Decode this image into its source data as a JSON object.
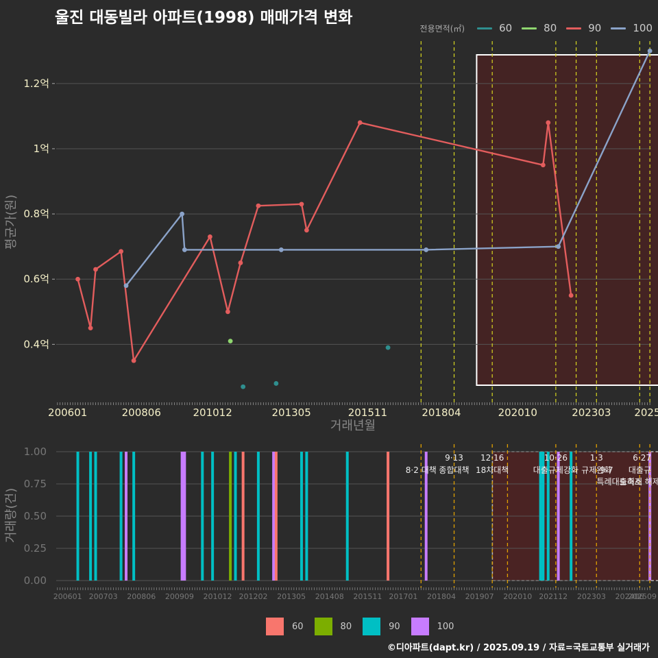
{
  "title": "울진 대동빌라 아파트(1998) 매매가격 변화",
  "legend_top": {
    "label": "전용면적(㎡)",
    "items": [
      {
        "name": "60",
        "color": "#2f8f8f"
      },
      {
        "name": "80",
        "color": "#8fd66f"
      },
      {
        "name": "90",
        "color": "#e35d5d"
      },
      {
        "name": "100",
        "color": "#8ba3c9"
      }
    ]
  },
  "legend_bottom": {
    "items": [
      {
        "name": "60",
        "color": "#f8766d"
      },
      {
        "name": "80",
        "color": "#7cae00"
      },
      {
        "name": "90",
        "color": "#00bfc4"
      },
      {
        "name": "100",
        "color": "#c77cff"
      }
    ]
  },
  "source": "©디아파트(dapt.kr) / 2025.09.19 / 자료=국토교통부 실거래가",
  "chart_data": [
    {
      "type": "line",
      "title": "울진 대동빌라 아파트(1998) 매매가격 변화",
      "xlabel": "거래년월",
      "ylabel": "평균가(원)",
      "x_unit": "months since 2006-01",
      "xlim": [
        -4.5,
        229.5
      ],
      "ylim": [
        0.22,
        1.33
      ],
      "x_ticks": [
        {
          "x": 0,
          "label": "200601"
        },
        {
          "x": 29,
          "label": "200806"
        },
        {
          "x": 57,
          "label": "201012"
        },
        {
          "x": 88,
          "label": "201305"
        },
        {
          "x": 118,
          "label": "201511"
        },
        {
          "x": 147,
          "label": "201804"
        },
        {
          "x": 177,
          "label": "202010"
        },
        {
          "x": 206,
          "label": "202303"
        },
        {
          "x": 228,
          "label": "2025"
        }
      ],
      "y_ticks": [
        {
          "y": 0.4,
          "label": "0.4억"
        },
        {
          "y": 0.6,
          "label": "0.6억"
        },
        {
          "y": 0.8,
          "label": "0.8억"
        },
        {
          "y": 1.0,
          "label": "1억"
        },
        {
          "y": 1.2,
          "label": "1.2억"
        }
      ],
      "series": [
        {
          "name": "90",
          "color": "#e35d5d",
          "kind": "line",
          "points": [
            [
              4,
              0.6
            ],
            [
              9,
              0.45
            ],
            [
              11,
              0.63
            ],
            [
              21,
              0.685
            ],
            [
              26,
              0.35
            ],
            [
              56,
              0.73
            ],
            [
              63,
              0.5
            ],
            [
              68,
              0.65
            ],
            [
              75,
              0.825
            ],
            [
              92,
              0.83
            ],
            [
              94,
              0.75
            ],
            [
              115,
              1.08
            ],
            [
              187,
              0.95
            ],
            [
              189,
              1.08
            ],
            [
              198,
              0.55
            ]
          ]
        },
        {
          "name": "100",
          "color": "#8ba3c9",
          "kind": "line",
          "points": [
            [
              23,
              0.58
            ],
            [
              45,
              0.8
            ],
            [
              46,
              0.69
            ],
            [
              84,
              0.69
            ],
            [
              141,
              0.69
            ],
            [
              193,
              0.7
            ],
            [
              229,
              1.3
            ]
          ]
        },
        {
          "name": "80",
          "color": "#8fd66f",
          "kind": "points",
          "points": [
            [
              64,
              0.41
            ]
          ]
        },
        {
          "name": "60",
          "color": "#2f8f8f",
          "kind": "points",
          "points": [
            [
              69,
              0.27
            ],
            [
              82,
              0.28
            ],
            [
              126,
              0.39
            ]
          ]
        }
      ],
      "policy_lines_x": [
        139,
        152,
        167,
        192,
        200,
        208,
        225,
        229
      ],
      "highlight_range_x": [
        173,
        229
      ]
    },
    {
      "type": "bar",
      "title": "",
      "ylabel": "거래량(건)",
      "ylim": [
        0,
        1
      ],
      "y_ticks": [
        "0.00",
        "0.25",
        "0.50",
        "0.75",
        "1.00"
      ],
      "x_ticks": [
        {
          "x": 0,
          "label": "200601"
        },
        {
          "x": 14,
          "label": "200703"
        },
        {
          "x": 29,
          "label": "200806"
        },
        {
          "x": 44,
          "label": "200909"
        },
        {
          "x": 59,
          "label": "201012"
        },
        {
          "x": 73,
          "label": "201202"
        },
        {
          "x": 88,
          "label": "201305"
        },
        {
          "x": 103,
          "label": "201408"
        },
        {
          "x": 118,
          "label": "201511"
        },
        {
          "x": 132,
          "label": "201701"
        },
        {
          "x": 147,
          "label": "201804"
        },
        {
          "x": 162,
          "label": "201907"
        },
        {
          "x": 177,
          "label": "202010"
        },
        {
          "x": 191,
          "label": "202112"
        },
        {
          "x": 206,
          "label": "202303"
        },
        {
          "x": 221,
          "label": "202406"
        },
        {
          "x": 229,
          "label": "202509"
        }
      ],
      "bars": [
        {
          "x": 4,
          "size": "90",
          "value": 1
        },
        {
          "x": 9,
          "size": "90",
          "value": 1
        },
        {
          "x": 11,
          "size": "90",
          "value": 1
        },
        {
          "x": 21,
          "size": "90",
          "value": 1
        },
        {
          "x": 23,
          "size": "100",
          "value": 1
        },
        {
          "x": 26,
          "size": "90",
          "value": 1
        },
        {
          "x": 45,
          "size": "100",
          "value": 1
        },
        {
          "x": 46,
          "size": "100",
          "value": 1
        },
        {
          "x": 53,
          "size": "90",
          "value": 1
        },
        {
          "x": 57,
          "size": "90",
          "value": 1
        },
        {
          "x": 64,
          "size": "80",
          "value": 1
        },
        {
          "x": 66,
          "size": "90",
          "value": 1
        },
        {
          "x": 69,
          "size": "60",
          "value": 1
        },
        {
          "x": 75,
          "size": "90",
          "value": 1
        },
        {
          "x": 81,
          "size": "100",
          "value": 1
        },
        {
          "x": 82,
          "size": "60",
          "value": 1
        },
        {
          "x": 92,
          "size": "90",
          "value": 1
        },
        {
          "x": 94,
          "size": "90",
          "value": 1
        },
        {
          "x": 110,
          "size": "90",
          "value": 1
        },
        {
          "x": 126,
          "size": "60",
          "value": 1
        },
        {
          "x": 141,
          "size": "100",
          "value": 1
        },
        {
          "x": 186,
          "size": "90",
          "value": 1
        },
        {
          "x": 187,
          "size": "90",
          "value": 1
        },
        {
          "x": 189,
          "size": "90",
          "value": 1
        },
        {
          "x": 193,
          "size": "100",
          "value": 1
        },
        {
          "x": 198,
          "size": "90",
          "value": 1
        },
        {
          "x": 229,
          "size": "100",
          "value": 1
        }
      ],
      "policy_lines_x": [
        139,
        152,
        167,
        173,
        192,
        200,
        208,
        225,
        229
      ],
      "highlight_range_x": [
        173,
        229
      ],
      "annotations": [
        {
          "x": 139,
          "row": 1,
          "text": "8·2 대책"
        },
        {
          "x": 152,
          "row": 0,
          "text": "9·13"
        },
        {
          "x": 152,
          "row": 1,
          "text": "종합대책"
        },
        {
          "x": 167,
          "row": 0,
          "text": "12·16"
        },
        {
          "x": 167,
          "row": 1,
          "text": "18차대책"
        },
        {
          "x": 192,
          "row": 0,
          "text": "10·26"
        },
        {
          "x": 192,
          "row": 1,
          "text": "대출규제강화"
        },
        {
          "x": 208,
          "row": 0,
          "text": "1·3"
        },
        {
          "x": 208,
          "row": 1,
          "text": "규제완화"
        },
        {
          "x": 212,
          "row": 2,
          "text": "9·7"
        },
        {
          "x": 217,
          "row": 3,
          "text": "특례대출축소"
        },
        {
          "x": 225,
          "row": 3,
          "text": "토허제 해제"
        },
        {
          "x": 229,
          "row": 0,
          "text": "6·27"
        },
        {
          "x": 229,
          "row": 1,
          "text": "대출규"
        }
      ]
    }
  ]
}
